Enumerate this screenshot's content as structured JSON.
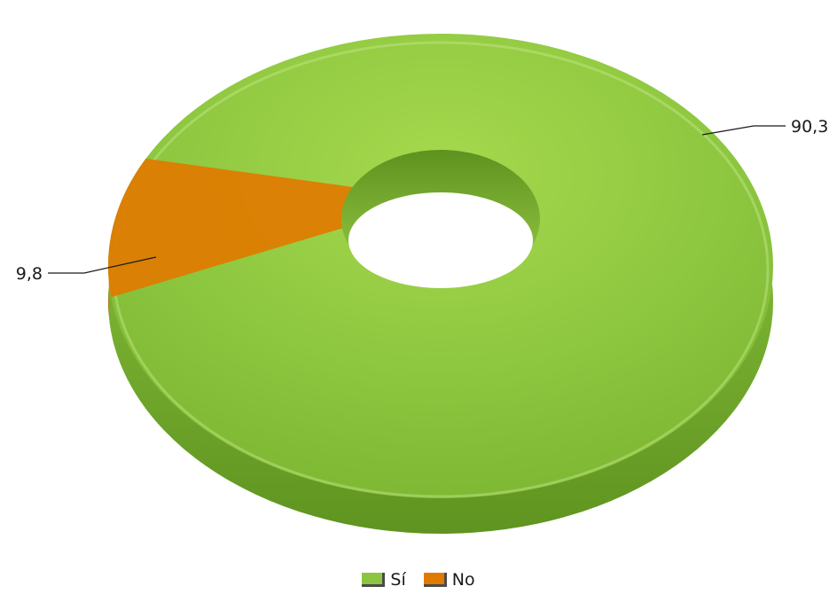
{
  "chart_data": {
    "type": "pie",
    "style": "3d-doughnut",
    "categories": [
      "Sí",
      "No"
    ],
    "values": [
      90.3,
      9.8
    ],
    "data_labels": [
      "90,3",
      "9,8"
    ],
    "colors": [
      "#8cc63f",
      "#e07b00"
    ],
    "legend_position": "bottom",
    "title": "",
    "xlabel": "",
    "ylabel": ""
  }
}
